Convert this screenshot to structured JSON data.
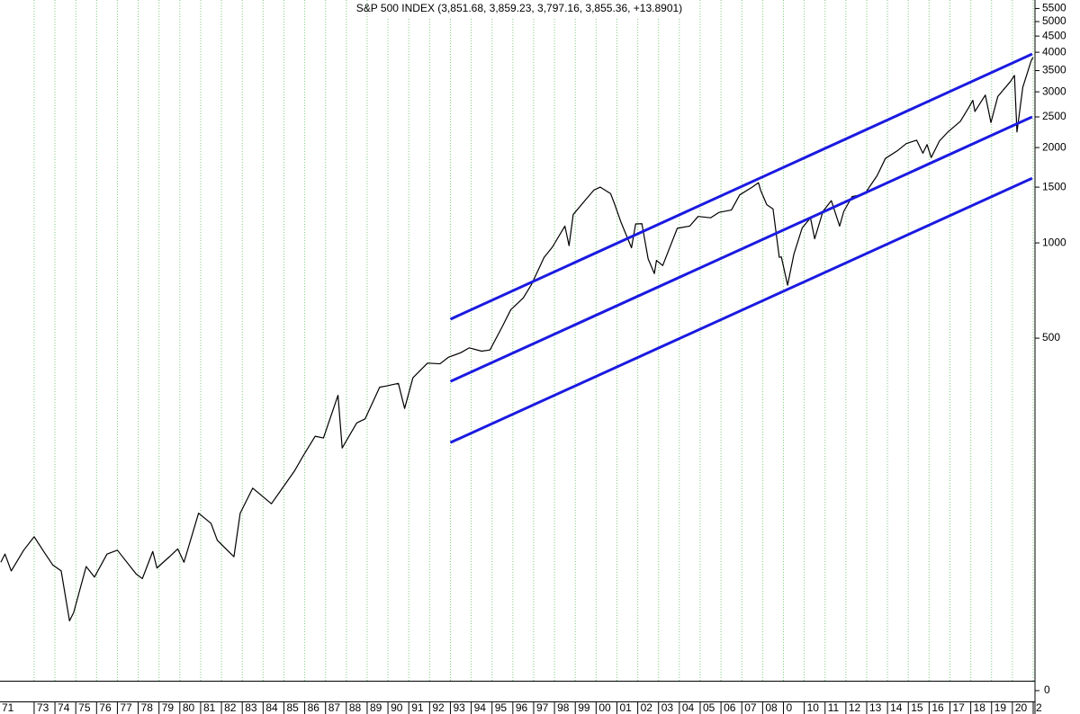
{
  "chart_data": [
    {
      "type": "line",
      "title": "S&P 500 INDEX (3,851.68, 3,859.23, 3,797.16, 3,855.36, +13.8901)",
      "log_scale": true,
      "grid": true,
      "ylim": [
        41.4,
        5850
      ],
      "yticks": [
        5500,
        5000,
        4500,
        4000,
        3500,
        3000,
        2500,
        2000,
        1500,
        1000,
        500
      ],
      "xlim": [
        1971.36,
        2021.0
      ],
      "xticks": [
        {
          "value": 1971,
          "label": "71"
        },
        {
          "value": 1973,
          "label": "73"
        },
        {
          "value": 1974,
          "label": "74"
        },
        {
          "value": 1975,
          "label": "75"
        },
        {
          "value": 1976,
          "label": "76"
        },
        {
          "value": 1977,
          "label": "77"
        },
        {
          "value": 1978,
          "label": "78"
        },
        {
          "value": 1979,
          "label": "79"
        },
        {
          "value": 1980,
          "label": "80"
        },
        {
          "value": 1981,
          "label": "81"
        },
        {
          "value": 1982,
          "label": "82"
        },
        {
          "value": 1983,
          "label": "83"
        },
        {
          "value": 1984,
          "label": "84"
        },
        {
          "value": 1985,
          "label": "85"
        },
        {
          "value": 1986,
          "label": "86"
        },
        {
          "value": 1987,
          "label": "87"
        },
        {
          "value": 1988,
          "label": "88"
        },
        {
          "value": 1989,
          "label": "89"
        },
        {
          "value": 1990,
          "label": "90"
        },
        {
          "value": 1991,
          "label": "91"
        },
        {
          "value": 1992,
          "label": "92"
        },
        {
          "value": 1993,
          "label": "93"
        },
        {
          "value": 1994,
          "label": "94"
        },
        {
          "value": 1995,
          "label": "95"
        },
        {
          "value": 1996,
          "label": "96"
        },
        {
          "value": 1997,
          "label": "97"
        },
        {
          "value": 1998,
          "label": "98"
        },
        {
          "value": 1999,
          "label": "99"
        },
        {
          "value": 2000,
          "label": "00"
        },
        {
          "value": 2001,
          "label": "01"
        },
        {
          "value": 2002,
          "label": "02"
        },
        {
          "value": 2003,
          "label": "03"
        },
        {
          "value": 2004,
          "label": "04"
        },
        {
          "value": 2005,
          "label": "05"
        },
        {
          "value": 2006,
          "label": "06"
        },
        {
          "value": 2007,
          "label": "07"
        },
        {
          "value": 2008,
          "label": "08"
        },
        {
          "value": 2009,
          "label": "0"
        },
        {
          "value": 2010,
          "label": "10"
        },
        {
          "value": 2011,
          "label": "11"
        },
        {
          "value": 2012,
          "label": "12"
        },
        {
          "value": 2013,
          "label": "13"
        },
        {
          "value": 2014,
          "label": "14"
        },
        {
          "value": 2015,
          "label": "15"
        },
        {
          "value": 2016,
          "label": "16"
        },
        {
          "value": 2017,
          "label": "17"
        },
        {
          "value": 2018,
          "label": "18"
        },
        {
          "value": 2019,
          "label": "19"
        },
        {
          "value": 2020,
          "label": "20"
        },
        {
          "value": 2021,
          "label": "2"
        }
      ],
      "series": [
        {
          "color": "#000000",
          "x": [
            1971.4,
            1971.6,
            1971.9,
            1972.5,
            1973.0,
            1973.5,
            1973.9,
            1974.3,
            1974.7,
            1974.9,
            1975.5,
            1975.9,
            1976.5,
            1977.0,
            1977.9,
            1978.2,
            1978.7,
            1978.9,
            1979.5,
            1979.9,
            1980.2,
            1980.9,
            1981.5,
            1981.8,
            1982.6,
            1982.9,
            1983.5,
            1984.4,
            1984.9,
            1985.5,
            1985.9,
            1986.5,
            1986.9,
            1987.6,
            1987.8,
            1988.5,
            1988.9,
            1989.6,
            1989.9,
            1990.5,
            1990.8,
            1991.2,
            1991.9,
            1992.5,
            1992.9,
            1993.5,
            1993.9,
            1994.5,
            1994.9,
            1995.5,
            1995.9,
            1996.5,
            1996.9,
            1997.5,
            1997.9,
            1998.5,
            1998.7,
            1998.9,
            1999.5,
            1999.9,
            2000.2,
            2000.7,
            2000.9,
            2001.2,
            2001.7,
            2001.9,
            2002.2,
            2002.5,
            2002.8,
            2002.9,
            2003.2,
            2003.9,
            2004.5,
            2004.9,
            2005.5,
            2005.9,
            2006.5,
            2006.9,
            2007.5,
            2007.8,
            2007.9,
            2008.2,
            2008.5,
            2008.8,
            2008.9,
            2009.2,
            2009.5,
            2009.9,
            2010.3,
            2010.5,
            2010.9,
            2011.3,
            2011.7,
            2011.9,
            2012.3,
            2012.9,
            2013.5,
            2013.9,
            2014.5,
            2014.9,
            2015.4,
            2015.7,
            2015.9,
            2016.1,
            2016.5,
            2016.9,
            2017.5,
            2017.9,
            2018.1,
            2018.2,
            2018.7,
            2018.97,
            2019.3,
            2019.9,
            2020.1,
            2020.22,
            2020.5,
            2020.9,
            2020.99
          ],
          "values": [
            98,
            104,
            92,
            107,
            118,
            105,
            96,
            92,
            64,
            68,
            95,
            88,
            104,
            107,
            90,
            87,
            106,
            94,
            102,
            108,
            98,
            140,
            130,
            115,
            102,
            140,
            168,
            150,
            167,
            190,
            211,
            245,
            242,
            330,
            225,
            270,
            278,
            350,
            353,
            360,
            300,
            375,
            417,
            415,
            435,
            450,
            466,
            455,
            459,
            545,
            615,
            670,
            740,
            900,
            970,
            1130,
            980,
            1229,
            1370,
            1469,
            1500,
            1430,
            1320,
            1160,
            965,
            1148,
            1150,
            890,
            800,
            880,
            848,
            1112,
            1130,
            1212,
            1200,
            1248,
            1270,
            1418,
            1500,
            1550,
            1468,
            1320,
            1280,
            900,
            903,
            735,
            920,
            1115,
            1200,
            1030,
            1258,
            1360,
            1130,
            1258,
            1400,
            1426,
            1630,
            1848,
            1960,
            2059,
            2110,
            1920,
            2044,
            1860,
            2100,
            2239,
            2420,
            2674,
            2820,
            2600,
            2930,
            2400,
            2900,
            3230,
            3380,
            2240,
            3100,
            3756,
            3855
          ]
        },
        {
          "color": "#1a1ae0",
          "x": [
            1993.0,
            2020.95
          ],
          "values": [
            574,
            3950
          ]
        },
        {
          "color": "#1a1ae0",
          "x": [
            1993.0,
            2020.95
          ],
          "values": [
            365,
            2500
          ]
        },
        {
          "color": "#1a1ae0",
          "x": [
            1993.0,
            2020.95
          ],
          "values": [
            234,
            1600
          ]
        }
      ]
    },
    {
      "type": "panel",
      "yticks": [
        0
      ]
    }
  ]
}
